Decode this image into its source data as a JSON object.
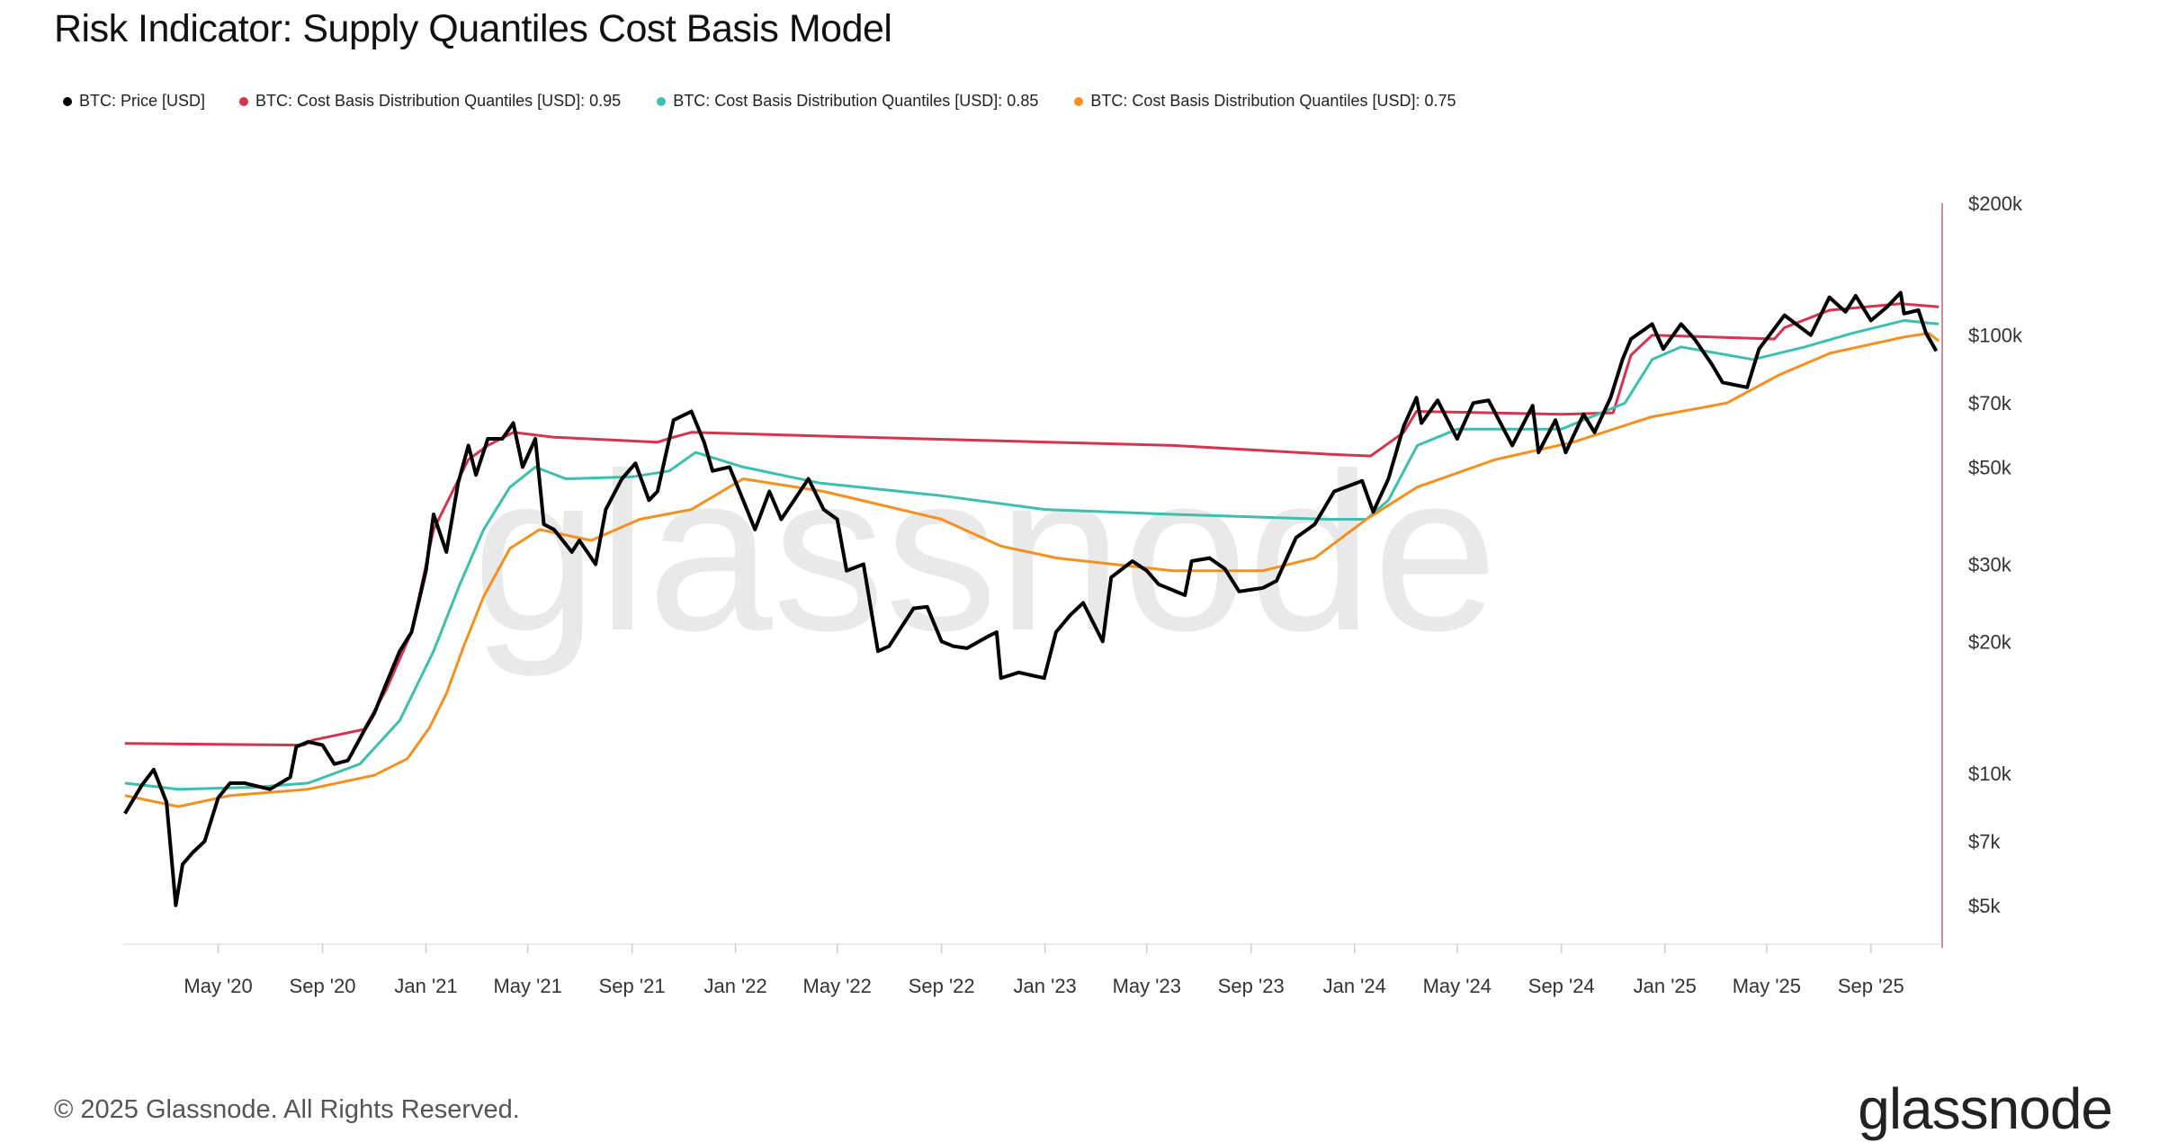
{
  "title": "Risk Indicator: Supply Quantiles Cost Basis Model",
  "footer": "© 2025 Glassnode. All Rights Reserved.",
  "logo_text": "glassnode",
  "watermark": "glassnode",
  "legend": [
    {
      "label": "BTC: Price [USD]",
      "color": "#000000"
    },
    {
      "label": "BTC: Cost Basis Distribution Quantiles [USD]: 0.95",
      "color": "#d6334f"
    },
    {
      "label": "BTC: Cost Basis Distribution Quantiles [USD]: 0.85",
      "color": "#3dbfad"
    },
    {
      "label": "BTC: Cost Basis Distribution Quantiles [USD]: 0.75",
      "color": "#f5901e"
    }
  ],
  "chart_data": {
    "type": "line",
    "title": "Risk Indicator: Supply Quantiles Cost Basis Model",
    "x_range": [
      "2020-01-10",
      "2025-11-24"
    ],
    "y_scale": "log",
    "ylim": [
      4000,
      200000
    ],
    "x_ticks": [
      {
        "date": "2020-05-01",
        "label": "May '20"
      },
      {
        "date": "2020-09-01",
        "label": "Sep '20"
      },
      {
        "date": "2021-01-01",
        "label": "Jan '21"
      },
      {
        "date": "2021-05-01",
        "label": "May '21"
      },
      {
        "date": "2021-09-01",
        "label": "Sep '21"
      },
      {
        "date": "2022-01-01",
        "label": "Jan '22"
      },
      {
        "date": "2022-05-01",
        "label": "May '22"
      },
      {
        "date": "2022-09-01",
        "label": "Sep '22"
      },
      {
        "date": "2023-01-01",
        "label": "Jan '23"
      },
      {
        "date": "2023-05-01",
        "label": "May '23"
      },
      {
        "date": "2023-09-01",
        "label": "Sep '23"
      },
      {
        "date": "2024-01-01",
        "label": "Jan '24"
      },
      {
        "date": "2024-05-01",
        "label": "May '24"
      },
      {
        "date": "2024-09-01",
        "label": "Sep '24"
      },
      {
        "date": "2025-01-01",
        "label": "Jan '25"
      },
      {
        "date": "2025-05-01",
        "label": "May '25"
      },
      {
        "date": "2025-09-01",
        "label": "Sep '25"
      }
    ],
    "y_ticks": [
      {
        "value": 200000,
        "label": "$200k"
      },
      {
        "value": 100000,
        "label": "$100k"
      },
      {
        "value": 70000,
        "label": "$70k"
      },
      {
        "value": 50000,
        "label": "$50k"
      },
      {
        "value": 30000,
        "label": "$30k"
      },
      {
        "value": 20000,
        "label": "$20k"
      },
      {
        "value": 10000,
        "label": "$10k"
      },
      {
        "value": 7000,
        "label": "$7k"
      },
      {
        "value": 5000,
        "label": "$5k"
      }
    ],
    "series": [
      {
        "name": "BTC: Price [USD]",
        "color": "#000000",
        "points": [
          [
            "2020-01-12",
            8100
          ],
          [
            "2020-02-01",
            9400
          ],
          [
            "2020-02-15",
            10200
          ],
          [
            "2020-03-01",
            8600
          ],
          [
            "2020-03-12",
            5000
          ],
          [
            "2020-03-20",
            6200
          ],
          [
            "2020-04-01",
            6600
          ],
          [
            "2020-04-15",
            7000
          ],
          [
            "2020-05-01",
            8800
          ],
          [
            "2020-05-15",
            9500
          ],
          [
            "2020-06-01",
            9500
          ],
          [
            "2020-07-01",
            9200
          ],
          [
            "2020-07-25",
            9800
          ],
          [
            "2020-08-01",
            11500
          ],
          [
            "2020-08-15",
            11800
          ],
          [
            "2020-09-01",
            11600
          ],
          [
            "2020-09-15",
            10500
          ],
          [
            "2020-10-01",
            10700
          ],
          [
            "2020-10-20",
            12500
          ],
          [
            "2020-11-01",
            13700
          ],
          [
            "2020-11-15",
            16000
          ],
          [
            "2020-12-01",
            19000
          ],
          [
            "2020-12-15",
            21000
          ],
          [
            "2021-01-01",
            29000
          ],
          [
            "2021-01-10",
            39000
          ],
          [
            "2021-01-25",
            32000
          ],
          [
            "2021-02-08",
            46000
          ],
          [
            "2021-02-20",
            56000
          ],
          [
            "2021-03-01",
            48000
          ],
          [
            "2021-03-15",
            58000
          ],
          [
            "2021-04-01",
            58000
          ],
          [
            "2021-04-14",
            63000
          ],
          [
            "2021-04-25",
            50000
          ],
          [
            "2021-05-10",
            58000
          ],
          [
            "2021-05-20",
            37000
          ],
          [
            "2021-06-01",
            36000
          ],
          [
            "2021-06-22",
            32000
          ],
          [
            "2021-07-01",
            34000
          ],
          [
            "2021-07-20",
            30000
          ],
          [
            "2021-08-01",
            40000
          ],
          [
            "2021-08-20",
            47000
          ],
          [
            "2021-09-05",
            51000
          ],
          [
            "2021-09-21",
            42000
          ],
          [
            "2021-10-01",
            44000
          ],
          [
            "2021-10-20",
            64000
          ],
          [
            "2021-11-10",
            67000
          ],
          [
            "2021-11-25",
            57000
          ],
          [
            "2021-12-05",
            49000
          ],
          [
            "2021-12-25",
            50000
          ],
          [
            "2022-01-10",
            42000
          ],
          [
            "2022-01-24",
            36000
          ],
          [
            "2022-02-10",
            44000
          ],
          [
            "2022-02-24",
            38000
          ],
          [
            "2022-03-28",
            47000
          ],
          [
            "2022-04-15",
            40000
          ],
          [
            "2022-05-01",
            38000
          ],
          [
            "2022-05-12",
            29000
          ],
          [
            "2022-06-01",
            30000
          ],
          [
            "2022-06-18",
            19000
          ],
          [
            "2022-07-01",
            19500
          ],
          [
            "2022-07-30",
            23800
          ],
          [
            "2022-08-15",
            24000
          ],
          [
            "2022-09-01",
            20000
          ],
          [
            "2022-09-15",
            19500
          ],
          [
            "2022-10-01",
            19300
          ],
          [
            "2022-10-25",
            20500
          ],
          [
            "2022-11-05",
            21000
          ],
          [
            "2022-11-10",
            16500
          ],
          [
            "2022-12-01",
            17000
          ],
          [
            "2022-12-31",
            16500
          ],
          [
            "2023-01-14",
            21000
          ],
          [
            "2023-01-31",
            23000
          ],
          [
            "2023-02-15",
            24500
          ],
          [
            "2023-03-10",
            20000
          ],
          [
            "2023-03-20",
            28000
          ],
          [
            "2023-04-14",
            30500
          ],
          [
            "2023-05-01",
            29000
          ],
          [
            "2023-05-15",
            27000
          ],
          [
            "2023-06-15",
            25500
          ],
          [
            "2023-06-23",
            30500
          ],
          [
            "2023-07-14",
            31000
          ],
          [
            "2023-08-01",
            29300
          ],
          [
            "2023-08-18",
            26000
          ],
          [
            "2023-09-15",
            26500
          ],
          [
            "2023-10-01",
            27500
          ],
          [
            "2023-10-24",
            34500
          ],
          [
            "2023-11-15",
            37000
          ],
          [
            "2023-12-08",
            44000
          ],
          [
            "2024-01-10",
            46500
          ],
          [
            "2024-01-23",
            39500
          ],
          [
            "2024-02-10",
            47000
          ],
          [
            "2024-02-28",
            62000
          ],
          [
            "2024-03-14",
            72000
          ],
          [
            "2024-03-20",
            63000
          ],
          [
            "2024-04-08",
            71000
          ],
          [
            "2024-05-01",
            58000
          ],
          [
            "2024-05-20",
            70000
          ],
          [
            "2024-06-07",
            71000
          ],
          [
            "2024-07-05",
            56000
          ],
          [
            "2024-07-29",
            69000
          ],
          [
            "2024-08-05",
            54000
          ],
          [
            "2024-08-25",
            64000
          ],
          [
            "2024-09-06",
            54000
          ],
          [
            "2024-09-27",
            66000
          ],
          [
            "2024-10-10",
            60000
          ],
          [
            "2024-10-29",
            72000
          ],
          [
            "2024-11-12",
            88000
          ],
          [
            "2024-11-22",
            98000
          ],
          [
            "2024-12-17",
            106000
          ],
          [
            "2024-12-30",
            93000
          ],
          [
            "2025-01-20",
            106000
          ],
          [
            "2025-02-05",
            98000
          ],
          [
            "2025-02-25",
            86000
          ],
          [
            "2025-03-10",
            78000
          ],
          [
            "2025-04-08",
            76000
          ],
          [
            "2025-04-22",
            93000
          ],
          [
            "2025-05-22",
            111000
          ],
          [
            "2025-06-22",
            100000
          ],
          [
            "2025-07-14",
            122000
          ],
          [
            "2025-08-02",
            113000
          ],
          [
            "2025-08-14",
            123000
          ],
          [
            "2025-09-01",
            108000
          ],
          [
            "2025-09-20",
            116000
          ],
          [
            "2025-10-06",
            125000
          ],
          [
            "2025-10-10",
            112000
          ],
          [
            "2025-10-27",
            114000
          ],
          [
            "2025-11-05",
            101000
          ],
          [
            "2025-11-17",
            92000
          ]
        ]
      },
      {
        "name": "BTC: Cost Basis Distribution Quantiles [USD]: 0.95",
        "color": "#d6334f",
        "points": [
          [
            "2020-01-12",
            11700
          ],
          [
            "2020-08-10",
            11600
          ],
          [
            "2020-08-20",
            11900
          ],
          [
            "2020-10-20",
            12600
          ],
          [
            "2020-11-15",
            15500
          ],
          [
            "2020-12-15",
            21000
          ],
          [
            "2021-01-10",
            36000
          ],
          [
            "2021-02-20",
            52000
          ],
          [
            "2021-03-15",
            56000
          ],
          [
            "2021-04-14",
            60000
          ],
          [
            "2021-06-01",
            58500
          ],
          [
            "2021-10-01",
            57000
          ],
          [
            "2021-10-20",
            58500
          ],
          [
            "2021-11-10",
            60000
          ],
          [
            "2022-06-01",
            58500
          ],
          [
            "2023-06-01",
            56000
          ],
          [
            "2023-12-01",
            53500
          ],
          [
            "2024-01-20",
            53000
          ],
          [
            "2024-02-28",
            60000
          ],
          [
            "2024-03-14",
            67000
          ],
          [
            "2024-09-01",
            66000
          ],
          [
            "2024-11-01",
            66500
          ],
          [
            "2024-11-22",
            90000
          ],
          [
            "2024-12-17",
            100000
          ],
          [
            "2025-05-10",
            98000
          ],
          [
            "2025-05-22",
            104000
          ],
          [
            "2025-07-14",
            114000
          ],
          [
            "2025-10-06",
            118000
          ],
          [
            "2025-11-20",
            116000
          ]
        ]
      },
      {
        "name": "BTC: Cost Basis Distribution Quantiles [USD]: 0.85",
        "color": "#3dbfad",
        "points": [
          [
            "2020-01-12",
            9500
          ],
          [
            "2020-03-15",
            9200
          ],
          [
            "2020-06-15",
            9300
          ],
          [
            "2020-08-15",
            9500
          ],
          [
            "2020-10-15",
            10500
          ],
          [
            "2020-12-01",
            13200
          ],
          [
            "2021-01-10",
            19000
          ],
          [
            "2021-02-10",
            27000
          ],
          [
            "2021-03-10",
            36000
          ],
          [
            "2021-04-10",
            45000
          ],
          [
            "2021-05-10",
            50000
          ],
          [
            "2021-06-15",
            47000
          ],
          [
            "2021-09-01",
            47500
          ],
          [
            "2021-10-15",
            49000
          ],
          [
            "2021-11-15",
            54000
          ],
          [
            "2022-01-10",
            50000
          ],
          [
            "2022-04-10",
            46000
          ],
          [
            "2022-09-01",
            43000
          ],
          [
            "2023-01-01",
            40000
          ],
          [
            "2023-06-01",
            39000
          ],
          [
            "2023-12-01",
            38000
          ],
          [
            "2024-01-15",
            38000
          ],
          [
            "2024-02-10",
            42000
          ],
          [
            "2024-03-15",
            56000
          ],
          [
            "2024-05-01",
            61000
          ],
          [
            "2024-09-01",
            61000
          ],
          [
            "2024-11-15",
            70000
          ],
          [
            "2024-12-17",
            88000
          ],
          [
            "2025-01-20",
            94000
          ],
          [
            "2025-04-15",
            88000
          ],
          [
            "2025-06-15",
            94000
          ],
          [
            "2025-08-10",
            101000
          ],
          [
            "2025-10-10",
            108000
          ],
          [
            "2025-11-20",
            106000
          ]
        ]
      },
      {
        "name": "BTC: Cost Basis Distribution Quantiles [USD]: 0.75",
        "color": "#f5901e",
        "points": [
          [
            "2020-01-12",
            8900
          ],
          [
            "2020-03-15",
            8400
          ],
          [
            "2020-05-15",
            8900
          ],
          [
            "2020-08-15",
            9200
          ],
          [
            "2020-11-01",
            9900
          ],
          [
            "2020-12-10",
            10800
          ],
          [
            "2021-01-05",
            12700
          ],
          [
            "2021-01-25",
            15200
          ],
          [
            "2021-02-15",
            19600
          ],
          [
            "2021-03-10",
            25300
          ],
          [
            "2021-04-10",
            32600
          ],
          [
            "2021-05-15",
            36000
          ],
          [
            "2021-07-15",
            34000
          ],
          [
            "2021-09-10",
            38000
          ],
          [
            "2021-11-10",
            40000
          ],
          [
            "2022-01-10",
            47000
          ],
          [
            "2022-04-15",
            44000
          ],
          [
            "2022-09-01",
            38000
          ],
          [
            "2022-11-10",
            33000
          ],
          [
            "2023-01-15",
            31000
          ],
          [
            "2023-06-01",
            29000
          ],
          [
            "2023-09-15",
            29000
          ],
          [
            "2023-11-15",
            31000
          ],
          [
            "2024-01-15",
            38000
          ],
          [
            "2024-03-15",
            45000
          ],
          [
            "2024-06-15",
            52000
          ],
          [
            "2024-09-15",
            57000
          ],
          [
            "2024-12-15",
            65000
          ],
          [
            "2025-03-15",
            70000
          ],
          [
            "2025-05-15",
            81000
          ],
          [
            "2025-07-15",
            91000
          ],
          [
            "2025-10-10",
            99000
          ],
          [
            "2025-11-08",
            101000
          ],
          [
            "2025-11-20",
            97000
          ]
        ]
      }
    ]
  }
}
